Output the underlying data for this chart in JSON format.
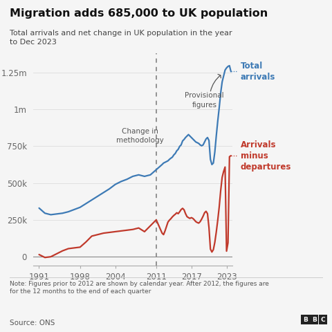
{
  "title": "Migration adds 685,000 to UK population",
  "subtitle": "Total arrivals and net change in UK population in the year\nto Dec 2023",
  "note": "Note: Figures prior to 2012 are shown by calendar year. After 2012, the figures are\nfor the 12 months to the end of each quarter",
  "source": "Source: ONS",
  "blue_color": "#3d7ab5",
  "red_color": "#c0392b",
  "bg_color": "#f5f5f5",
  "dashed_line_x": 2011,
  "yticks": [
    0,
    250000,
    500000,
    750000,
    1000000,
    1250000
  ],
  "ytick_labels": [
    "0",
    "250k",
    "500k",
    "750k",
    "1m",
    "1.25m"
  ],
  "xticks": [
    1991,
    1998,
    2004,
    2011,
    2017,
    2023
  ],
  "xlim": [
    1990,
    2024
  ],
  "ylim": [
    -60000,
    1380000
  ],
  "total_arrivals_x": [
    1991,
    1992,
    1993,
    1994,
    1995,
    1996,
    1997,
    1998,
    1999,
    2000,
    2001,
    2002,
    2003,
    2004,
    2005,
    2006,
    2007,
    2008,
    2009,
    2010,
    2011,
    2012.0,
    2012.25,
    2012.5,
    2012.75,
    2013.0,
    2013.25,
    2013.5,
    2013.75,
    2014.0,
    2014.25,
    2014.5,
    2014.75,
    2015.0,
    2015.25,
    2015.5,
    2015.75,
    2016.0,
    2016.25,
    2016.5,
    2016.75,
    2017.0,
    2017.25,
    2017.5,
    2017.75,
    2018.0,
    2018.25,
    2018.5,
    2018.75,
    2019.0,
    2019.25,
    2019.5,
    2019.75,
    2020.0,
    2020.25,
    2020.5,
    2020.75,
    2021.0,
    2021.25,
    2021.5,
    2021.75,
    2022.0,
    2022.25,
    2022.5,
    2022.75,
    2023.0,
    2023.25,
    2023.5,
    2023.75
  ],
  "total_arrivals_y": [
    330000,
    295000,
    285000,
    290000,
    295000,
    305000,
    320000,
    335000,
    360000,
    385000,
    410000,
    435000,
    460000,
    490000,
    510000,
    525000,
    545000,
    555000,
    545000,
    555000,
    590000,
    625000,
    635000,
    640000,
    645000,
    650000,
    660000,
    668000,
    675000,
    690000,
    700000,
    718000,
    728000,
    748000,
    758000,
    785000,
    795000,
    808000,
    818000,
    828000,
    818000,
    808000,
    798000,
    788000,
    778000,
    773000,
    768000,
    758000,
    752000,
    758000,
    778000,
    798000,
    808000,
    788000,
    660000,
    625000,
    635000,
    710000,
    820000,
    920000,
    1010000,
    1110000,
    1185000,
    1225000,
    1265000,
    1280000,
    1290000,
    1295000,
    1255000
  ],
  "net_migration_x": [
    1991,
    1992,
    1993,
    1994,
    1995,
    1996,
    1997,
    1998,
    1999,
    2000,
    2001,
    2002,
    2003,
    2004,
    2005,
    2006,
    2007,
    2008,
    2009,
    2010,
    2011,
    2012.0,
    2012.25,
    2012.5,
    2012.75,
    2013.0,
    2013.25,
    2013.5,
    2013.75,
    2014.0,
    2014.25,
    2014.5,
    2014.75,
    2015.0,
    2015.25,
    2015.5,
    2015.75,
    2016.0,
    2016.25,
    2016.5,
    2016.75,
    2017.0,
    2017.25,
    2017.5,
    2017.75,
    2018.0,
    2018.25,
    2018.5,
    2018.75,
    2019.0,
    2019.25,
    2019.5,
    2019.75,
    2020.0,
    2020.25,
    2020.5,
    2020.75,
    2021.0,
    2021.25,
    2021.5,
    2021.75,
    2022.0,
    2022.25,
    2022.5,
    2022.75,
    2023.0,
    2023.25,
    2023.5,
    2023.75
  ],
  "net_migration_y": [
    15000,
    -5000,
    0,
    20000,
    40000,
    55000,
    60000,
    65000,
    100000,
    140000,
    150000,
    160000,
    165000,
    170000,
    175000,
    180000,
    185000,
    195000,
    170000,
    210000,
    250000,
    160000,
    150000,
    175000,
    205000,
    235000,
    248000,
    258000,
    270000,
    280000,
    288000,
    298000,
    292000,
    305000,
    320000,
    328000,
    318000,
    292000,
    272000,
    265000,
    260000,
    265000,
    260000,
    250000,
    238000,
    232000,
    228000,
    238000,
    255000,
    275000,
    298000,
    308000,
    292000,
    198000,
    52000,
    32000,
    48000,
    98000,
    168000,
    248000,
    338000,
    448000,
    538000,
    578000,
    608000,
    38000,
    95000,
    678000,
    685000
  ]
}
